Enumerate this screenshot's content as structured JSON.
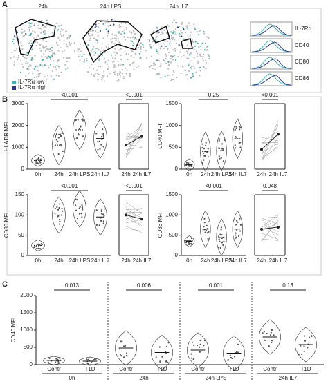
{
  "panels": [
    "A",
    "B",
    "C"
  ],
  "panel_a": {
    "tsne_titles": [
      "24h",
      "24h LPS",
      "24h IL7"
    ],
    "legend": [
      "IL-7Rα low",
      "IL-7Rα high"
    ],
    "histogram_labels": [
      "IL-7Rα",
      "CD40",
      "CD80",
      "CD86"
    ]
  },
  "chart_data": [
    {
      "type": "violin",
      "ylabel": "HLADR MFI",
      "categories": [
        "0h",
        "24h",
        "24h LPS",
        "24h IL7"
      ],
      "values": [
        400,
        1100,
        1800,
        1400
      ],
      "ylim": [
        0,
        3000
      ],
      "yticks": [
        0,
        1000,
        2000,
        3000
      ],
      "pvalue": "<0.001"
    },
    {
      "type": "paired",
      "categories": [
        "24h",
        "24h IL7"
      ],
      "values": [
        1100,
        1500
      ],
      "ylim": [
        0,
        3000
      ],
      "pvalue": "<0.001"
    },
    {
      "type": "violin",
      "ylabel": "CD40 MFI",
      "categories": [
        "0h",
        "24h",
        "24h LPS",
        "24h IL7"
      ],
      "values": [
        100,
        400,
        420,
        700
      ],
      "ylim": [
        0,
        1500
      ],
      "yticks": [
        0,
        500,
        1000,
        1500
      ],
      "pvalue": "0.25"
    },
    {
      "type": "paired",
      "categories": [
        "24h",
        "24h IL7"
      ],
      "values": [
        450,
        800
      ],
      "ylim": [
        0,
        1500
      ],
      "pvalue": "<0.001"
    },
    {
      "type": "violin",
      "ylabel": "CD80 MFI",
      "categories": [
        "0h",
        "24h",
        "24h LPS",
        "24h IL7"
      ],
      "values": [
        25,
        100,
        115,
        95
      ],
      "ylim": [
        0,
        150
      ],
      "yticks": [
        0,
        50,
        100,
        150
      ],
      "pvalue": "<0.001"
    },
    {
      "type": "paired",
      "categories": [
        "24h",
        "24h IL7"
      ],
      "values": [
        100,
        90
      ],
      "ylim": [
        0,
        150
      ],
      "pvalue": "<0.001"
    },
    {
      "type": "violin",
      "ylabel": "CD86 MFI",
      "categories": [
        "0h",
        "24h",
        "24h LPS",
        "24h IL7"
      ],
      "values": [
        350,
        650,
        450,
        650
      ],
      "ylim": [
        0,
        1500
      ],
      "yticks": [
        0,
        500,
        1000,
        1500
      ],
      "pvalue": "<0.001"
    },
    {
      "type": "paired",
      "categories": [
        "24h",
        "24h IL7"
      ],
      "values": [
        650,
        700
      ],
      "ylim": [
        0,
        1500
      ],
      "pvalue": "0.048"
    },
    {
      "type": "grouped-violin",
      "ylabel": "CD40 MFI",
      "groups": [
        "0h",
        "24h",
        "24h LPS",
        "24h IL7"
      ],
      "series": [
        {
          "name": "Contr",
          "values": [
            120,
            480,
            420,
            800
          ]
        },
        {
          "name": "T1D",
          "values": [
            100,
            350,
            330,
            580
          ]
        }
      ],
      "ylim": [
        0,
        2000
      ],
      "yticks": [
        0,
        500,
        1000,
        1500,
        2000
      ],
      "pvalues": [
        "0.013",
        "0.006",
        "0.001",
        "0.13"
      ]
    }
  ]
}
